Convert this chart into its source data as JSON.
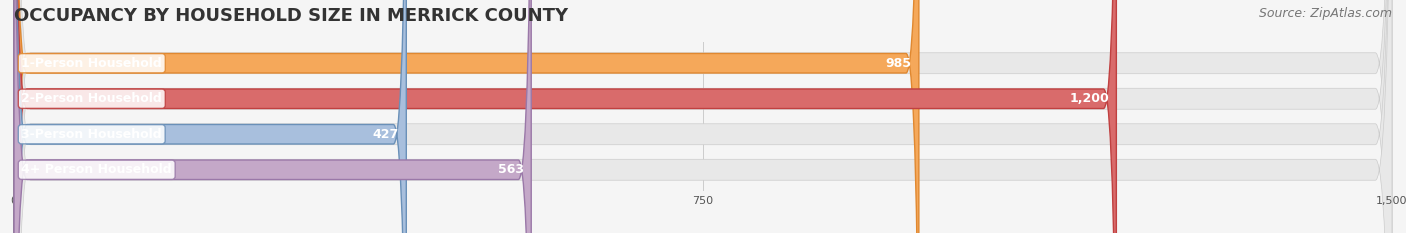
{
  "title": "OCCUPANCY BY HOUSEHOLD SIZE IN MERRICK COUNTY",
  "source": "Source: ZipAtlas.com",
  "categories": [
    "1-Person Household",
    "2-Person Household",
    "3-Person Household",
    "4+ Person Household"
  ],
  "values": [
    985,
    1200,
    427,
    563
  ],
  "bar_colors": [
    "#F5A85A",
    "#D96B6B",
    "#A8BFDD",
    "#C4A8C8"
  ],
  "bar_edge_colors": [
    "#E08830",
    "#C04040",
    "#6A90B8",
    "#9A78A8"
  ],
  "label_colors": [
    "white",
    "white",
    "#555555",
    "#555555"
  ],
  "xlim": [
    0,
    1500
  ],
  "xticks": [
    0,
    750,
    1500
  ],
  "background_color": "#f0f0f0",
  "bar_background_color": "#e8e8e8",
  "title_fontsize": 13,
  "source_fontsize": 9,
  "label_fontsize": 9,
  "value_fontsize": 9,
  "bar_height": 0.55,
  "figsize": [
    14.06,
    2.33
  ],
  "dpi": 100
}
